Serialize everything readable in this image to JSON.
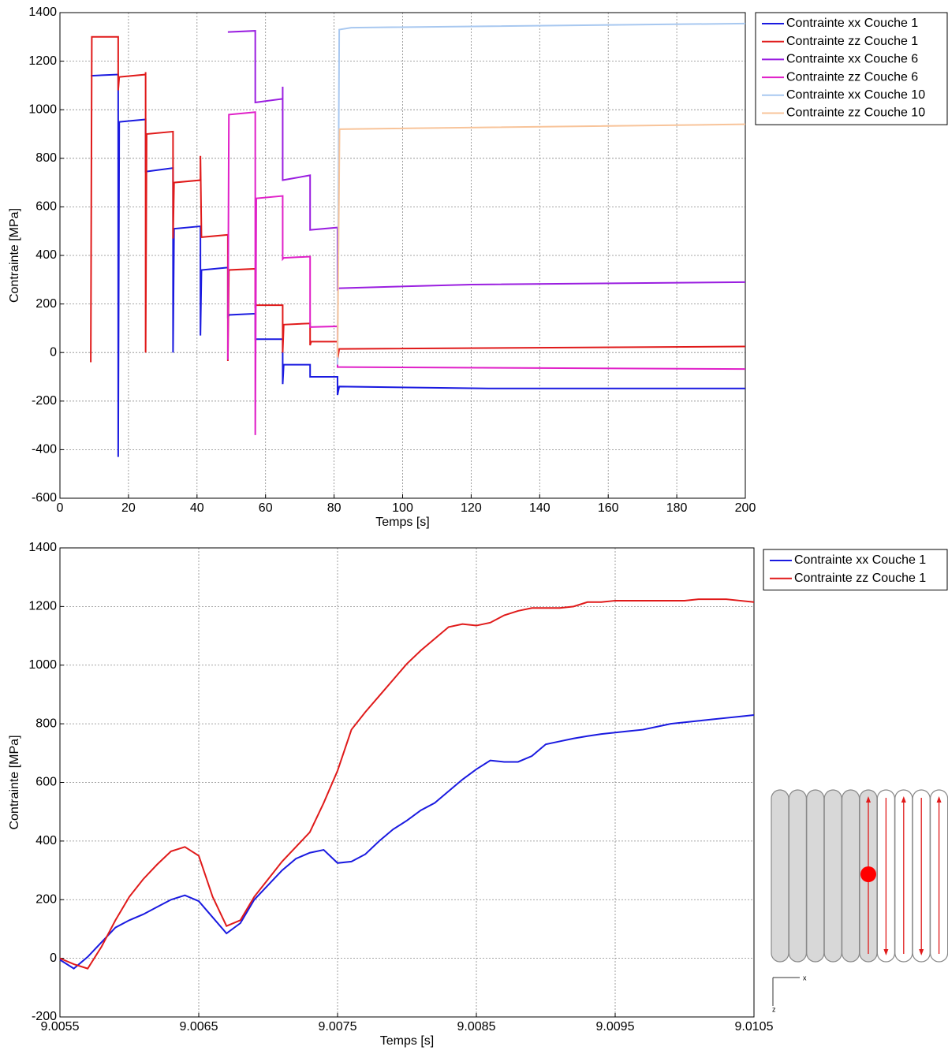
{
  "chart_data": [
    {
      "type": "line",
      "xlabel": "Temps [s]",
      "ylabel": "Contrainte [MPa]",
      "xlim": [
        0,
        200
      ],
      "ylim": [
        -600,
        1400
      ],
      "xticks": [
        0,
        20,
        40,
        60,
        80,
        100,
        120,
        140,
        160,
        180,
        200
      ],
      "yticks": [
        -600,
        -400,
        -200,
        0,
        200,
        400,
        600,
        800,
        1000,
        1200,
        1400
      ],
      "grid": true,
      "legend": "outside-right",
      "series": [
        {
          "name": "Contrainte xx Couche 1",
          "color": "#1a1ae0",
          "x": [
            9,
            17,
            17,
            17.3,
            25,
            25,
            33,
            33,
            33.3,
            41,
            41,
            41.3,
            49,
            49,
            49.3,
            57,
            57,
            65,
            65,
            65.3,
            73,
            73,
            81,
            81,
            81.5,
            125,
            200
          ],
          "values": [
            1140,
            1145,
            -430,
            950,
            960,
            745,
            760,
            0,
            510,
            520,
            70,
            340,
            350,
            140,
            155,
            160,
            55,
            55,
            -130,
            -50,
            -50,
            -100,
            -100,
            -175,
            -140,
            -148,
            -148
          ]
        },
        {
          "name": "Contrainte zz Couche 1",
          "color": "#e01a1a",
          "x": [
            9,
            9.3,
            17,
            17,
            17.3,
            25,
            25,
            25,
            25.3,
            33,
            33,
            33.3,
            41,
            41,
            41.3,
            49,
            49,
            49.3,
            57,
            57,
            57.3,
            65,
            65,
            65.3,
            73,
            73,
            73.3,
            81,
            81,
            81.5,
            200
          ],
          "values": [
            -40,
            1300,
            1300,
            1080,
            1135,
            1145,
            1155,
            0,
            900,
            910,
            470,
            700,
            710,
            810,
            475,
            485,
            -35,
            340,
            345,
            190,
            195,
            195,
            0,
            115,
            120,
            30,
            45,
            45,
            -30,
            15,
            25
          ]
        },
        {
          "name": "Contrainte xx Couche 6",
          "color": "#9a1ee0",
          "x": [
            49,
            57,
            57,
            65,
            65,
            65,
            73,
            73,
            81,
            81,
            81.5,
            120,
            200
          ],
          "values": [
            1320,
            1325,
            1030,
            1045,
            1095,
            710,
            730,
            505,
            515,
            260,
            265,
            280,
            290
          ]
        },
        {
          "name": "Contrainte zz Couche 6",
          "color": "#e020c8",
          "x": [
            49,
            49.3,
            57,
            57,
            57.3,
            65,
            65,
            65.3,
            73,
            73,
            81,
            81,
            81.5,
            200
          ],
          "values": [
            -30,
            980,
            990,
            -340,
            635,
            645,
            385,
            390,
            395,
            105,
            108,
            -60,
            -60,
            -68
          ]
        },
        {
          "name": "Contrainte xx Couche 10",
          "color": "#a8c8f0",
          "x": [
            81,
            81.5,
            85,
            200
          ],
          "values": [
            -50,
            1330,
            1338,
            1355
          ]
        },
        {
          "name": "Contrainte zz Couche 10",
          "color": "#f8c49a",
          "x": [
            81,
            81.6,
            200
          ],
          "values": [
            -20,
            920,
            940
          ]
        }
      ]
    },
    {
      "type": "line",
      "xlabel": "Temps [s]",
      "ylabel": "Contrainte [MPa]",
      "xlim": [
        9.0055,
        9.0105
      ],
      "ylim": [
        -200,
        1400
      ],
      "xticks": [
        9.0055,
        9.0065,
        9.0075,
        9.0085,
        9.0095,
        9.0105
      ],
      "yticks": [
        -200,
        0,
        200,
        400,
        600,
        800,
        1000,
        1200,
        1400
      ],
      "grid": true,
      "legend": "outside-right",
      "x": [
        9.0055,
        9.0056,
        9.0057,
        9.0058,
        9.0059,
        9.006,
        9.0061,
        9.0062,
        9.0063,
        9.0064,
        9.0065,
        9.0066,
        9.0067,
        9.0068,
        9.0069,
        9.007,
        9.0071,
        9.0072,
        9.0073,
        9.0074,
        9.0075,
        9.0076,
        9.0077,
        9.0078,
        9.0079,
        9.008,
        9.0081,
        9.0082,
        9.0083,
        9.0084,
        9.0085,
        9.0086,
        9.0087,
        9.0088,
        9.0089,
        9.009,
        9.0091,
        9.0092,
        9.0093,
        9.0094,
        9.0095,
        9.0096,
        9.0097,
        9.0098,
        9.0099,
        9.01,
        9.0101,
        9.0102,
        9.0103,
        9.0104,
        9.0105
      ],
      "series": [
        {
          "name": "Contrainte xx Couche 1",
          "color": "#1a1ae0",
          "values": [
            -5,
            -35,
            5,
            55,
            105,
            130,
            150,
            175,
            200,
            215,
            195,
            140,
            85,
            120,
            200,
            250,
            300,
            340,
            360,
            370,
            325,
            330,
            355,
            400,
            440,
            470,
            505,
            530,
            570,
            610,
            645,
            675,
            670,
            670,
            690,
            730,
            740,
            750,
            758,
            765,
            770,
            775,
            780,
            790,
            800,
            805,
            810,
            815,
            820,
            825,
            830
          ]
        },
        {
          "name": "Contrainte zz Couche 1",
          "color": "#e01a1a",
          "values": [
            0,
            -20,
            -35,
            40,
            130,
            210,
            270,
            320,
            365,
            380,
            350,
            210,
            110,
            130,
            210,
            270,
            330,
            380,
            430,
            530,
            640,
            780,
            840,
            895,
            950,
            1005,
            1050,
            1090,
            1130,
            1140,
            1135,
            1145,
            1170,
            1185,
            1195,
            1195,
            1195,
            1200,
            1215,
            1215,
            1220,
            1220,
            1220,
            1220,
            1220,
            1220,
            1225,
            1225,
            1225,
            1220,
            1215
          ]
        }
      ]
    }
  ],
  "inset_axes": {
    "x": "x",
    "z": "z"
  }
}
